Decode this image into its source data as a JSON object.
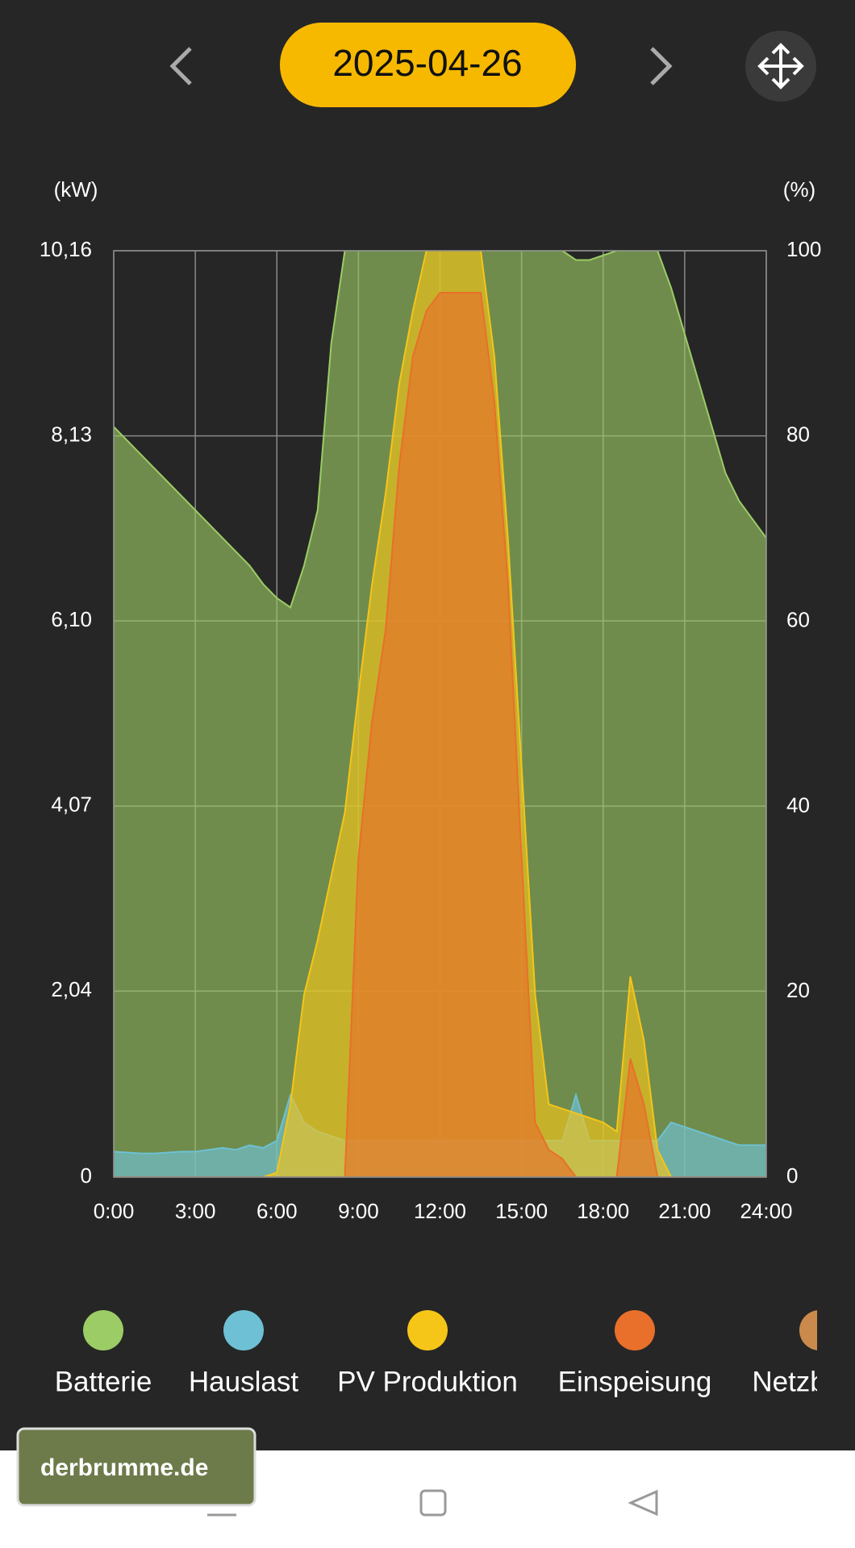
{
  "header": {
    "date": "2025-04-26"
  },
  "chart_data": {
    "type": "area",
    "y_unit_label": "(kW)",
    "y2_unit_label": "(%)",
    "x": [
      0,
      0.5,
      1,
      1.5,
      2,
      2.5,
      3,
      3.5,
      4,
      4.5,
      5,
      5.5,
      6,
      6.5,
      7,
      7.5,
      8,
      8.5,
      9,
      9.5,
      10,
      10.5,
      11,
      11.5,
      12,
      12.5,
      13,
      13.5,
      14,
      14.5,
      15,
      15.5,
      16,
      16.5,
      17,
      17.5,
      18,
      18.5,
      19,
      19.5,
      20,
      20.5,
      21,
      21.5,
      22,
      22.5,
      23,
      23.5,
      24
    ],
    "xlim": [
      0,
      24
    ],
    "xticks": [
      {
        "value": 0,
        "label": "0:00"
      },
      {
        "value": 3,
        "label": "3:00"
      },
      {
        "value": 6,
        "label": "6:00"
      },
      {
        "value": 9,
        "label": "9:00"
      },
      {
        "value": 12,
        "label": "12:00"
      },
      {
        "value": 15,
        "label": "15:00"
      },
      {
        "value": 18,
        "label": "18:00"
      },
      {
        "value": 21,
        "label": "21:00"
      },
      {
        "value": 24,
        "label": "24:00"
      }
    ],
    "ylim": [
      0,
      10.16
    ],
    "yticks": [
      0,
      {
        "value": 2.04,
        "label": "2,04"
      },
      {
        "value": 4.07,
        "label": "4,07"
      },
      {
        "value": 6.1,
        "label": "6,10"
      },
      {
        "value": 8.13,
        "label": "8,13"
      },
      {
        "value": 10.16,
        "label": "10,16"
      }
    ],
    "y2lim": [
      0,
      100
    ],
    "y2ticks": [
      0,
      20,
      40,
      60,
      80,
      100
    ],
    "grid": true,
    "series": [
      {
        "name": "Batterie",
        "color": "#9ccc65",
        "axis": "y2",
        "values": [
          81,
          79.5,
          78,
          76.5,
          75,
          73.5,
          72,
          70.5,
          69,
          67.5,
          66,
          64,
          62.5,
          61.5,
          66,
          72,
          90,
          100,
          100,
          100,
          100,
          100,
          100,
          100,
          100,
          100,
          100,
          100,
          100,
          100,
          100,
          100,
          100,
          100,
          99,
          99,
          99.5,
          100,
          100,
          100,
          100,
          96,
          91,
          86,
          81,
          76,
          73,
          71,
          69
        ]
      },
      {
        "name": "Hauslast",
        "color": "#6ec1d4",
        "values": [
          0.28,
          0.27,
          0.26,
          0.26,
          0.27,
          0.28,
          0.28,
          0.3,
          0.32,
          0.3,
          0.35,
          0.32,
          0.4,
          0.9,
          0.6,
          0.5,
          0.45,
          0.4,
          0.4,
          0.4,
          0.4,
          0.4,
          0.4,
          0.4,
          0.4,
          0.4,
          0.4,
          0.4,
          0.4,
          0.4,
          0.4,
          0.4,
          0.4,
          0.4,
          0.9,
          0.4,
          0.4,
          0.4,
          0.4,
          0.4,
          0.4,
          0.6,
          0.55,
          0.5,
          0.45,
          0.4,
          0.35,
          0.35,
          0.35
        ]
      },
      {
        "name": "PV Produktion",
        "color": "#f5c518",
        "values": [
          0,
          0,
          0,
          0,
          0,
          0,
          0,
          0,
          0,
          0,
          0,
          0,
          0.05,
          0.8,
          2.0,
          2.6,
          3.3,
          4.0,
          5.3,
          6.5,
          7.5,
          8.7,
          9.5,
          10.16,
          10.16,
          10.16,
          10.16,
          10.16,
          9.0,
          7.0,
          4.5,
          2.0,
          0.8,
          0.75,
          0.7,
          0.65,
          0.6,
          0.5,
          2.2,
          1.5,
          0.3,
          0,
          0,
          0,
          0,
          0,
          0,
          0,
          0
        ]
      },
      {
        "name": "Einspeisung",
        "color": "#e8702a",
        "values": [
          0,
          0,
          0,
          0,
          0,
          0,
          0,
          0,
          0,
          0,
          0,
          0,
          0,
          0,
          0,
          0,
          0,
          0,
          3.5,
          5.0,
          6.0,
          7.8,
          9.0,
          9.5,
          9.7,
          9.7,
          9.7,
          9.7,
          8.5,
          6.5,
          3.5,
          0.6,
          0.3,
          0.2,
          0,
          0,
          0,
          0,
          1.3,
          0.8,
          0,
          0,
          0,
          0,
          0,
          0,
          0,
          0,
          0
        ]
      },
      {
        "name": "Netzbezug",
        "color": "#c98a4b",
        "values": [
          0,
          0,
          0,
          0,
          0,
          0,
          0,
          0,
          0,
          0,
          0,
          0,
          0,
          0,
          0,
          0,
          0,
          0,
          0,
          0,
          0,
          0,
          0,
          0,
          0,
          0,
          0,
          0,
          0,
          0,
          0,
          0,
          0,
          0,
          0,
          0,
          0,
          0,
          0,
          0,
          0,
          0,
          0,
          0,
          0,
          0,
          0,
          0,
          0
        ]
      }
    ]
  },
  "watermark": "derbrumme.de"
}
